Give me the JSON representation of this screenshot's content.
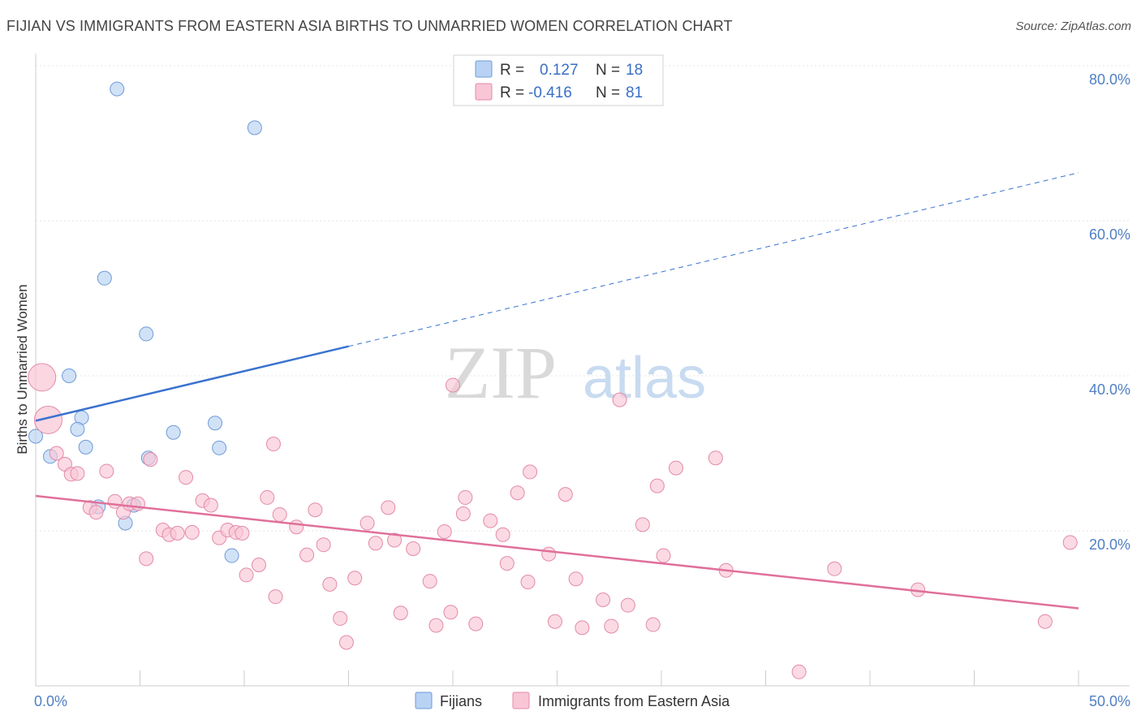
{
  "title": "FIJIAN VS IMMIGRANTS FROM EASTERN ASIA BIRTHS TO UNMARRIED WOMEN CORRELATION CHART",
  "source": "Source: ZipAtlas.com",
  "watermark": {
    "zip": "ZIP",
    "atlas": "atlas"
  },
  "legend": {
    "rows": [
      {
        "r_label": "R =",
        "r_value": "0.127",
        "n_label": "N =",
        "n_value": "18",
        "color": "#b9d2f3",
        "stroke": "#6e9bd8"
      },
      {
        "r_label": "R =",
        "r_value": "-0.416",
        "n_label": "N =",
        "n_value": "81",
        "color": "#f9c6d6",
        "stroke": "#e38aa8"
      }
    ]
  },
  "bottom_legend": [
    {
      "label": "Fijians",
      "color": "#b9d2f3",
      "stroke": "#6e9bd8"
    },
    {
      "label": "Immigrants from Eastern Asia",
      "color": "#f9c6d6",
      "stroke": "#e38aa8"
    }
  ],
  "chart_data": {
    "type": "scatter",
    "title": "FIJIAN VS IMMIGRANTS FROM EASTERN ASIA BIRTHS TO UNMARRIED WOMEN CORRELATION CHART",
    "xlabel": "",
    "ylabel": "Births to Unmarried Women",
    "xlim": [
      0,
      50
    ],
    "ylim": [
      0,
      80
    ],
    "x_tick_labels": [
      {
        "value": 0,
        "label": "0.0%"
      },
      {
        "value": 50,
        "label": "50.0%"
      }
    ],
    "y_tick_labels": [
      {
        "value": 80,
        "label": "80.0%"
      },
      {
        "value": 60,
        "label": "60.0%"
      },
      {
        "value": 40,
        "label": "40.0%"
      },
      {
        "value": 20,
        "label": "20.0%"
      }
    ],
    "x_minor_ticks": [
      5,
      10,
      15,
      20,
      25,
      30,
      35,
      40,
      45,
      50
    ],
    "series": [
      {
        "name": "Fijians",
        "color": "#b9d2f3",
        "stroke": "#6e9bd8",
        "trend": {
          "x": [
            0,
            15,
            50
          ],
          "y": [
            34.2,
            43.8,
            66.2
          ],
          "solid_until": 15,
          "color": "#3a72cf"
        },
        "points": [
          {
            "x": 3.9,
            "y": 77.0
          },
          {
            "x": 10.5,
            "y": 72.0
          },
          {
            "x": 3.3,
            "y": 52.6
          },
          {
            "x": 5.3,
            "y": 45.4
          },
          {
            "x": 1.6,
            "y": 40.0
          },
          {
            "x": 2.2,
            "y": 34.6
          },
          {
            "x": 0.0,
            "y": 32.2
          },
          {
            "x": 2.0,
            "y": 33.1
          },
          {
            "x": 2.4,
            "y": 30.8
          },
          {
            "x": 0.7,
            "y": 29.6
          },
          {
            "x": 5.4,
            "y": 29.4
          },
          {
            "x": 6.6,
            "y": 32.7
          },
          {
            "x": 8.6,
            "y": 33.9
          },
          {
            "x": 8.8,
            "y": 30.7
          },
          {
            "x": 3.0,
            "y": 23.1
          },
          {
            "x": 4.7,
            "y": 23.3
          },
          {
            "x": 4.3,
            "y": 21.0
          },
          {
            "x": 9.4,
            "y": 16.8
          }
        ]
      },
      {
        "name": "Immigrants from Eastern Asia",
        "color": "#f9c6d6",
        "stroke": "#e38aa8",
        "trend": {
          "x": [
            0,
            50
          ],
          "y": [
            24.5,
            10.0
          ],
          "solid_until": 50,
          "color": "#e0709a"
        },
        "points": [
          {
            "x": 0.3,
            "y": 39.8,
            "big": true
          },
          {
            "x": 0.6,
            "y": 34.3,
            "big": true
          },
          {
            "x": 1.0,
            "y": 30.0
          },
          {
            "x": 1.4,
            "y": 28.6
          },
          {
            "x": 1.7,
            "y": 27.3
          },
          {
            "x": 2.0,
            "y": 27.4
          },
          {
            "x": 2.6,
            "y": 23.0
          },
          {
            "x": 2.9,
            "y": 22.4
          },
          {
            "x": 3.4,
            "y": 27.7
          },
          {
            "x": 3.8,
            "y": 23.8
          },
          {
            "x": 4.2,
            "y": 22.4
          },
          {
            "x": 4.5,
            "y": 23.5
          },
          {
            "x": 4.9,
            "y": 23.5
          },
          {
            "x": 5.5,
            "y": 29.2
          },
          {
            "x": 5.3,
            "y": 16.4
          },
          {
            "x": 6.1,
            "y": 20.1
          },
          {
            "x": 6.4,
            "y": 19.5
          },
          {
            "x": 6.8,
            "y": 19.7
          },
          {
            "x": 7.2,
            "y": 26.9
          },
          {
            "x": 7.5,
            "y": 19.8
          },
          {
            "x": 8.0,
            "y": 23.9
          },
          {
            "x": 8.4,
            "y": 23.3
          },
          {
            "x": 8.8,
            "y": 19.1
          },
          {
            "x": 9.2,
            "y": 20.1
          },
          {
            "x": 9.6,
            "y": 19.8
          },
          {
            "x": 9.9,
            "y": 19.7
          },
          {
            "x": 10.1,
            "y": 14.3
          },
          {
            "x": 10.7,
            "y": 15.6
          },
          {
            "x": 11.1,
            "y": 24.3
          },
          {
            "x": 11.4,
            "y": 31.2
          },
          {
            "x": 11.7,
            "y": 22.1
          },
          {
            "x": 11.5,
            "y": 11.5
          },
          {
            "x": 12.5,
            "y": 20.5
          },
          {
            "x": 13.0,
            "y": 16.9
          },
          {
            "x": 13.4,
            "y": 22.7
          },
          {
            "x": 13.8,
            "y": 18.2
          },
          {
            "x": 14.1,
            "y": 13.1
          },
          {
            "x": 14.6,
            "y": 8.7
          },
          {
            "x": 14.9,
            "y": 5.6
          },
          {
            "x": 15.3,
            "y": 13.9
          },
          {
            "x": 15.9,
            "y": 21.0
          },
          {
            "x": 16.3,
            "y": 18.4
          },
          {
            "x": 16.9,
            "y": 23.0
          },
          {
            "x": 17.2,
            "y": 18.8
          },
          {
            "x": 17.5,
            "y": 9.4
          },
          {
            "x": 18.1,
            "y": 17.7
          },
          {
            "x": 18.9,
            "y": 13.5
          },
          {
            "x": 19.2,
            "y": 7.8
          },
          {
            "x": 19.6,
            "y": 19.9
          },
          {
            "x": 19.9,
            "y": 9.5
          },
          {
            "x": 20.0,
            "y": 38.8
          },
          {
            "x": 20.5,
            "y": 22.2
          },
          {
            "x": 20.6,
            "y": 24.3
          },
          {
            "x": 21.1,
            "y": 8.0
          },
          {
            "x": 21.8,
            "y": 21.3
          },
          {
            "x": 22.4,
            "y": 19.5
          },
          {
            "x": 22.6,
            "y": 15.8
          },
          {
            "x": 23.1,
            "y": 24.9
          },
          {
            "x": 23.7,
            "y": 27.6
          },
          {
            "x": 23.6,
            "y": 13.4
          },
          {
            "x": 24.6,
            "y": 17.0
          },
          {
            "x": 24.9,
            "y": 8.3
          },
          {
            "x": 25.4,
            "y": 24.7
          },
          {
            "x": 25.9,
            "y": 13.8
          },
          {
            "x": 26.2,
            "y": 7.5
          },
          {
            "x": 27.2,
            "y": 11.1
          },
          {
            "x": 27.6,
            "y": 7.7
          },
          {
            "x": 28.0,
            "y": 36.9
          },
          {
            "x": 28.4,
            "y": 10.4
          },
          {
            "x": 29.1,
            "y": 20.8
          },
          {
            "x": 29.6,
            "y": 7.9
          },
          {
            "x": 30.1,
            "y": 16.8
          },
          {
            "x": 29.8,
            "y": 25.8
          },
          {
            "x": 30.7,
            "y": 28.1
          },
          {
            "x": 32.6,
            "y": 29.4
          },
          {
            "x": 33.1,
            "y": 14.9
          },
          {
            "x": 36.6,
            "y": 1.8
          },
          {
            "x": 38.3,
            "y": 15.1
          },
          {
            "x": 42.3,
            "y": 12.4
          },
          {
            "x": 48.4,
            "y": 8.3
          },
          {
            "x": 49.6,
            "y": 18.5
          }
        ]
      }
    ]
  }
}
